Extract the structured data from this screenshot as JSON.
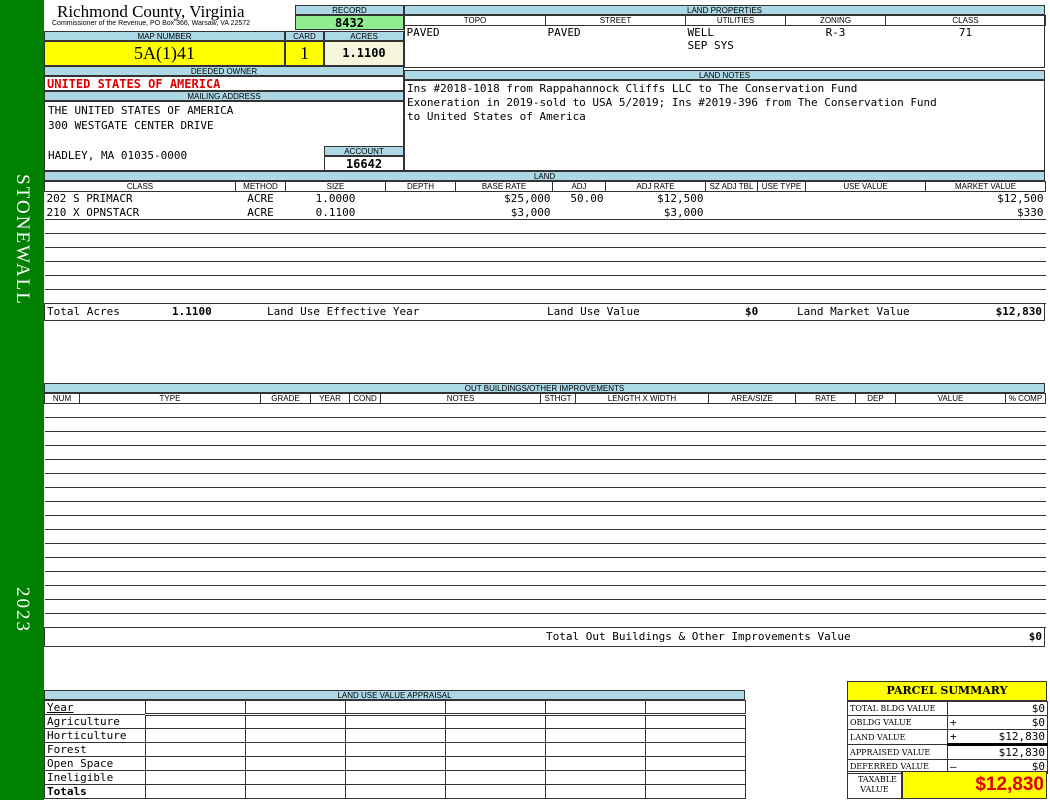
{
  "sidebar": {
    "district": "STONEWALL",
    "year": "2023",
    "color": "#008000"
  },
  "header": {
    "title": "Richmond County, Virginia",
    "subtitle": "Commissioner of the Revenue, PO Box 366, Warsaw, VA 22572"
  },
  "record": {
    "label": "RECORD",
    "value": "8432"
  },
  "map_number": {
    "label": "MAP NUMBER",
    "value": "5A(1)41"
  },
  "card": {
    "label": "CARD",
    "value": "1"
  },
  "acres": {
    "label": "ACRES",
    "value": "1.1100"
  },
  "owner": {
    "label": "DEEDED OWNER",
    "value": "UNITED STATES OF AMERICA"
  },
  "mailing": {
    "label": "MAILING ADDRESS",
    "line1": "THE UNITED STATES OF AMERICA",
    "line2": "300 WESTGATE CENTER DRIVE",
    "line3": "HADLEY, MA 01035-0000"
  },
  "account": {
    "label": "ACCOUNT",
    "value": "16642"
  },
  "land_properties": {
    "label": "LAND PROPERTIES",
    "columns": [
      "TOPO",
      "STREET",
      "UTILITIES",
      "ZONING",
      "CLASS"
    ],
    "topo": "PAVED",
    "street": "PAVED",
    "utilities1": "WELL",
    "utilities2": "SEP SYS",
    "zoning": "R-3",
    "class": "71"
  },
  "land_notes": {
    "label": "LAND NOTES",
    "lines": [
      "Ins #2018-1018 from Rappahannock Cliffs LLC to The Conservation Fund",
      "Exoneration in 2019-sold to USA 5/2019; Ins #2019-396 from The Conservation Fund",
      "to United States of America"
    ]
  },
  "land": {
    "label": "LAND",
    "columns": [
      "CLASS",
      "METHOD",
      "SIZE",
      "DEPTH",
      "BASE RATE",
      "ADJ",
      "ADJ RATE",
      "SZ ADJ TBL",
      "USE TYPE",
      "USE VALUE",
      "MARKET VALUE"
    ],
    "rows": [
      [
        "202 S PRIMACR",
        "ACRE",
        "1.0000",
        "",
        "$25,000",
        "50.00",
        "$12,500",
        "",
        "",
        "",
        "$12,500"
      ],
      [
        "210 X OPNSTACR",
        "ACRE",
        "0.1100",
        "",
        "$3,000",
        "",
        "$3,000",
        "",
        "",
        "",
        "$330"
      ]
    ],
    "totals": {
      "acres_label": "Total Acres",
      "acres": "1.1100",
      "effective_year_label": "Land Use Effective Year",
      "use_value_label": "Land Use Value",
      "use_value": "$0",
      "market_label": "Land Market Value",
      "market": "$12,830"
    }
  },
  "outbuildings": {
    "label": "OUT BUILDINGS/OTHER IMPROVEMENTS",
    "columns": [
      "NUM",
      "TYPE",
      "GRADE",
      "YEAR",
      "COND",
      "NOTES",
      "STHGT",
      "LENGTH X WIDTH",
      "AREA/SIZE",
      "RATE",
      "DEP",
      "VALUE",
      "% COMP"
    ],
    "total_label": "Total Out Buildings & Other Improvements Value",
    "total": "$0"
  },
  "land_use_appraisal": {
    "label": "LAND USE VALUE APPRAISAL",
    "rows": [
      "Year",
      "Agriculture",
      "Horticulture",
      "Forest",
      "Open Space",
      "Ineligible",
      "Totals"
    ]
  },
  "parcel_summary": {
    "title": "PARCEL SUMMARY",
    "rows": [
      {
        "label": "TOTAL BLDG VALUE",
        "sign": "",
        "value": "$0"
      },
      {
        "label": "OBLDG VALUE",
        "sign": "+",
        "value": "$0"
      },
      {
        "label": "LAND VALUE",
        "sign": "+",
        "value": "$12,830"
      },
      {
        "label": "APPRAISED VALUE",
        "sign": "",
        "value": "$12,830"
      },
      {
        "label": "DEFERRED VALUE",
        "sign": "–",
        "value": "$0"
      }
    ],
    "taxable_label": "TAXABLE VALUE",
    "taxable_value": "$12,830"
  }
}
